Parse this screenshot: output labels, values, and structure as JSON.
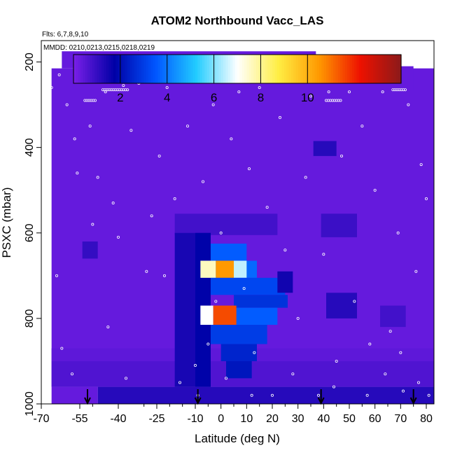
{
  "chart_data": {
    "type": "heatmap",
    "title": "ATOM2 Northbound Vacc_LAS",
    "flights_label": "Flts: 6,7,8,9,10",
    "dates_label": "MMDD: 0210,0213,0215,0218,0219",
    "xlabel": "Latitude (deg N)",
    "ylabel": "PSXC (mbar)",
    "xlim": [
      -70,
      83
    ],
    "ylim": [
      1000,
      150
    ],
    "x_ticks": [
      -70,
      -55,
      -40,
      -25,
      -10,
      0,
      10,
      20,
      30,
      40,
      50,
      60,
      70,
      80
    ],
    "x_tick_labels": [
      "-70",
      "-55",
      "-40",
      "-25",
      "-10",
      "0",
      "10",
      "20",
      "30",
      "40",
      "50",
      "60",
      "70",
      "80"
    ],
    "y_ticks": [
      200,
      400,
      600,
      800,
      1000
    ],
    "y_tick_labels": [
      "200",
      "400",
      "600",
      "800",
      "1000"
    ],
    "colorbar": {
      "min": 0,
      "max": 14,
      "ticks": [
        2,
        4,
        6,
        8,
        10
      ],
      "tick_labels": [
        "2",
        "4",
        "6",
        "8",
        "10"
      ],
      "colors": [
        "#7a1fe8",
        "#0000a6",
        "#0055ff",
        "#22ccff",
        "#ffffff",
        "#ffee44",
        "#ff9900",
        "#ee1100",
        "#8b1a1a"
      ]
    },
    "cells": [
      {
        "x0": -66,
        "x1": 83,
        "p0": 215,
        "p1": 960,
        "v": 0.3
      },
      {
        "x0": -62,
        "x1": 37,
        "p0": 175,
        "p1": 215,
        "v": 0.3
      },
      {
        "x0": 37,
        "x1": 75,
        "p0": 210,
        "p1": 265,
        "v": 0.3
      },
      {
        "x0": -66,
        "x1": -48,
        "p0": 960,
        "p1": 1000,
        "v": 0.3
      },
      {
        "x0": -48,
        "x1": 83,
        "p0": 960,
        "p1": 1000,
        "v": 1.2
      },
      {
        "x0": -66,
        "x1": 83,
        "p0": 900,
        "p1": 960,
        "v": 0.6
      },
      {
        "x0": -66,
        "x1": 83,
        "p0": 870,
        "p1": 900,
        "v": 0.4
      },
      {
        "x0": -18,
        "x1": 22,
        "p0": 555,
        "p1": 605,
        "v": 0.8
      },
      {
        "x0": 39,
        "x1": 53,
        "p0": 555,
        "p1": 610,
        "v": 0.9
      },
      {
        "x0": -54,
        "x1": -48,
        "p0": 620,
        "p1": 660,
        "v": 1.0
      },
      {
        "x0": 36,
        "x1": 45,
        "p0": 385,
        "p1": 420,
        "v": 1.2
      },
      {
        "x0": -18,
        "x1": -4,
        "p0": 600,
        "p1": 960,
        "v": 1.4
      },
      {
        "x0": -10,
        "x1": -4,
        "p0": 600,
        "p1": 960,
        "v": 1.8
      },
      {
        "x0": -4,
        "x1": 10,
        "p0": 625,
        "p1": 665,
        "v": 3.6
      },
      {
        "x0": -4,
        "x1": 14,
        "p0": 665,
        "p1": 705,
        "v": 3.8
      },
      {
        "x0": -8,
        "x1": -2,
        "p0": 665,
        "p1": 705,
        "v": 7.6
      },
      {
        "x0": -2,
        "x1": 5,
        "p0": 665,
        "p1": 705,
        "v": 10.5
      },
      {
        "x0": 5,
        "x1": 10,
        "p0": 665,
        "p1": 705,
        "v": 6.5
      },
      {
        "x0": -4,
        "x1": 25,
        "p0": 705,
        "p1": 745,
        "v": 3.2
      },
      {
        "x0": 5,
        "x1": 26,
        "p0": 745,
        "p1": 775,
        "v": 2.8
      },
      {
        "x0": -4,
        "x1": 22,
        "p0": 775,
        "p1": 815,
        "v": 3.6
      },
      {
        "x0": -8,
        "x1": -3,
        "p0": 770,
        "p1": 815,
        "v": 7.0
      },
      {
        "x0": -3,
        "x1": 6,
        "p0": 770,
        "p1": 815,
        "v": 11.5
      },
      {
        "x0": -4,
        "x1": 18,
        "p0": 815,
        "p1": 860,
        "v": 3.0
      },
      {
        "x0": 0,
        "x1": 14,
        "p0": 860,
        "p1": 900,
        "v": 2.5
      },
      {
        "x0": 2,
        "x1": 12,
        "p0": 900,
        "p1": 940,
        "v": 2.2
      },
      {
        "x0": 22,
        "x1": 28,
        "p0": 690,
        "p1": 740,
        "v": 1.5
      },
      {
        "x0": 41,
        "x1": 53,
        "p0": 740,
        "p1": 800,
        "v": 1.2
      },
      {
        "x0": 62,
        "x1": 72,
        "p0": 770,
        "p1": 820,
        "v": 0.8
      }
    ],
    "scale_ticks": [
      -50,
      -40,
      -30,
      -20,
      -15,
      -5,
      5,
      15,
      25,
      35,
      45,
      55,
      65,
      75
    ],
    "ground_markers_lat": [
      -52,
      -9,
      39,
      75
    ],
    "observation_points": [
      [
        -66,
        260
      ],
      [
        -63,
        230
      ],
      [
        -60,
        300
      ],
      [
        -57,
        380
      ],
      [
        -54,
        220
      ],
      [
        -51,
        350
      ],
      [
        -48,
        470
      ],
      [
        -45,
        270
      ],
      [
        -42,
        530
      ],
      [
        -40,
        610
      ],
      [
        -38,
        255
      ],
      [
        -35,
        360
      ],
      [
        -32,
        250
      ],
      [
        -29,
        690
      ],
      [
        -26,
        240
      ],
      [
        -24,
        420
      ],
      [
        -21,
        260
      ],
      [
        -18,
        520
      ],
      [
        -15,
        230
      ],
      [
        -13,
        350
      ],
      [
        -10,
        910
      ],
      [
        -9,
        980
      ],
      [
        -7,
        480
      ],
      [
        -5,
        860
      ],
      [
        -3,
        300
      ],
      [
        0,
        600
      ],
      [
        2,
        940
      ],
      [
        4,
        380
      ],
      [
        7,
        270
      ],
      [
        9,
        730
      ],
      [
        11,
        450
      ],
      [
        13,
        880
      ],
      [
        15,
        260
      ],
      [
        18,
        540
      ],
      [
        20,
        980
      ],
      [
        23,
        330
      ],
      [
        25,
        640
      ],
      [
        27,
        230
      ],
      [
        30,
        800
      ],
      [
        33,
        470
      ],
      [
        35,
        280
      ],
      [
        38,
        980
      ],
      [
        40,
        650
      ],
      [
        42,
        270
      ],
      [
        45,
        900
      ],
      [
        47,
        420
      ],
      [
        50,
        270
      ],
      [
        52,
        760
      ],
      [
        55,
        350
      ],
      [
        57,
        980
      ],
      [
        60,
        500
      ],
      [
        63,
        270
      ],
      [
        66,
        830
      ],
      [
        69,
        600
      ],
      [
        71,
        970
      ],
      [
        73,
        300
      ],
      [
        76,
        690
      ],
      [
        78,
        440
      ],
      [
        80,
        520
      ],
      [
        81,
        980
      ],
      [
        -62,
        870
      ],
      [
        -58,
        930
      ],
      [
        -50,
        580
      ],
      [
        -44,
        820
      ],
      [
        -37,
        940
      ],
      [
        -22,
        700
      ],
      [
        -16,
        950
      ],
      [
        -2,
        760
      ],
      [
        12,
        980
      ],
      [
        28,
        930
      ],
      [
        44,
        960
      ],
      [
        58,
        860
      ],
      [
        64,
        930
      ],
      [
        70,
        880
      ],
      [
        77,
        950
      ],
      [
        -64,
        700
      ],
      [
        -56,
        460
      ],
      [
        -27,
        560
      ]
    ],
    "observation_clusters": [
      {
        "x0": -53,
        "x1": -49,
        "p": 290
      },
      {
        "x0": -46,
        "x1": -36,
        "p": 265
      },
      {
        "x0": -32,
        "x1": -25,
        "p": 240
      },
      {
        "x0": -19,
        "x1": -14,
        "p": 215
      },
      {
        "x0": 41,
        "x1": 47,
        "p": 290
      },
      {
        "x0": 67,
        "x1": 72,
        "p": 265
      }
    ]
  }
}
